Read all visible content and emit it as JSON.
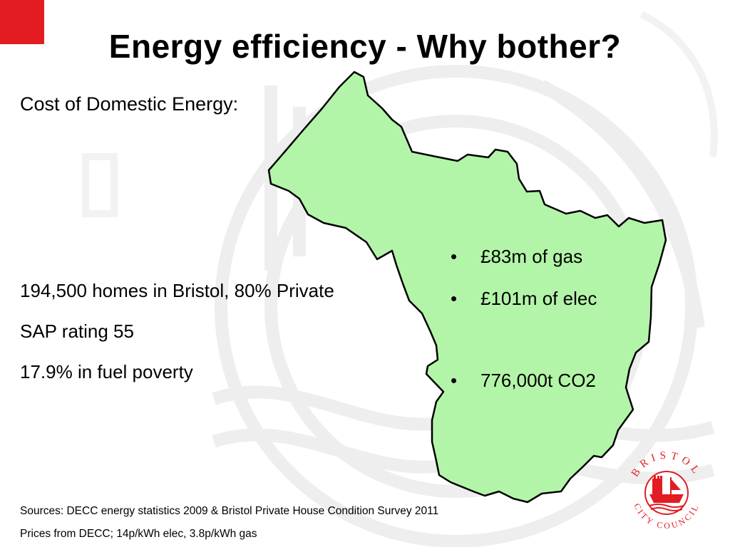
{
  "slide": {
    "title": "Energy efficiency - Why bother?",
    "subtitle": "Cost of Domestic Energy:",
    "stats": [
      "194,500 homes in Bristol, 80% Private",
      "SAP rating 55",
      "17.9% in fuel poverty"
    ],
    "bullets": [
      "£83m of gas",
      "£101m of elec",
      "776,000t CO2"
    ],
    "sources": [
      "Sources: DECC energy statistics 2009 & Bristol Private House Condition Survey 2011",
      "Prices from DECC; 14p/kWh elec, 3.8p/kWh gas"
    ],
    "bullet_glyph": "•"
  },
  "logo": {
    "text_top": "BRISTOL",
    "text_bottom": "CITY COUNCIL",
    "icon": "bristol-city-council-crest"
  },
  "colors": {
    "accent_red": "#e31b23",
    "map_fill": "#b3f5a8",
    "map_outline": "#000000"
  }
}
